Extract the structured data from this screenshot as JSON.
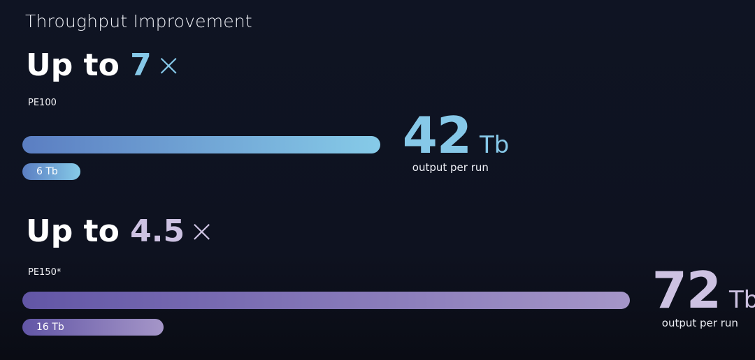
{
  "title": "Throughput Improvement",
  "chart_data": {
    "type": "bar",
    "title": "Throughput Improvement",
    "groups": [
      {
        "headline_prefix": "Up to",
        "multiplier": "7",
        "multiplier_symbol": "×",
        "label": "PE100",
        "new_value": 42,
        "new_value_text": "42",
        "old_value": 6,
        "old_value_text": "6 Tb",
        "unit": "Tb",
        "caption": "output per run",
        "accent": "#86c8e8",
        "bar_from": "#5b7ec2",
        "bar_to": "#86cbe8"
      },
      {
        "headline_prefix": "Up to",
        "multiplier": "4.5",
        "multiplier_symbol": "×",
        "label": "PE150*",
        "new_value": 72,
        "new_value_text": "72",
        "old_value": 16,
        "old_value_text": "16 Tb",
        "unit": "Tb",
        "caption": "output per run",
        "accent": "#cdc2e2",
        "bar_from": "#6256a6",
        "bar_to": "#a596c8"
      }
    ]
  }
}
